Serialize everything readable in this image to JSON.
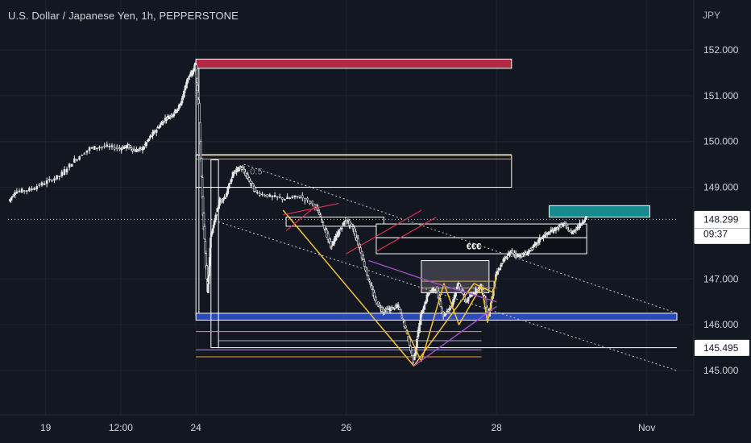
{
  "header": {
    "title": "U.S. Dollar / Japanese Yen, 1h, PEPPERSTONE",
    "currency": "JPY"
  },
  "chart_data": {
    "type": "candlestick",
    "y_ticks": [
      "152.000",
      "151.000",
      "150.000",
      "149.000",
      "147.000",
      "146.000",
      "145.000"
    ],
    "y_tick_values": [
      152,
      151,
      150,
      149,
      147,
      146,
      145
    ],
    "ylim": [
      144.6,
      153.0
    ],
    "x_ticks": [
      "19",
      "12:00",
      "24",
      "26",
      "28",
      "Nov"
    ],
    "x_tick_values": [
      0.5,
      1.0,
      1.5,
      2.5,
      3.5,
      4.5
    ],
    "xlim": [
      0.25,
      4.7
    ],
    "current_price": {
      "label": "148.299",
      "countdown": "09:37",
      "value": 148.299,
      "color": "#ffffff"
    },
    "marked_price": {
      "label": "145.495",
      "value": 145.495
    },
    "fib_label": "0.5",
    "annotation_text": "€€€",
    "colors": {
      "up": "#e8e8e8",
      "down": "#e8e8e8",
      "supply_zone": "#b22b45",
      "target_zone": "#17898f",
      "support_zone": "#2a4bb5",
      "orange_level": "#f29a3c",
      "purple_line": "#a94fcf",
      "pattern_line": "#f4c23b",
      "red_line": "#d9314e",
      "grid": "#1f2330"
    },
    "price_path": [
      [
        0.26,
        148.7
      ],
      [
        0.3,
        148.9
      ],
      [
        0.4,
        148.95
      ],
      [
        0.5,
        149.1
      ],
      [
        0.6,
        149.25
      ],
      [
        0.7,
        149.6
      ],
      [
        0.8,
        149.85
      ],
      [
        0.9,
        149.9
      ],
      [
        1.0,
        149.85
      ],
      [
        1.05,
        149.9
      ],
      [
        1.1,
        149.8
      ],
      [
        1.15,
        149.85
      ],
      [
        1.2,
        150.1
      ],
      [
        1.25,
        150.3
      ],
      [
        1.3,
        150.5
      ],
      [
        1.35,
        150.6
      ],
      [
        1.4,
        150.8
      ],
      [
        1.45,
        151.4
      ],
      [
        1.48,
        151.5
      ],
      [
        1.5,
        151.7
      ],
      [
        1.52,
        150.8
      ],
      [
        1.55,
        148.4
      ],
      [
        1.58,
        146.7
      ],
      [
        1.6,
        147.9
      ],
      [
        1.63,
        148.3
      ],
      [
        1.66,
        148.7
      ],
      [
        1.7,
        148.8
      ],
      [
        1.75,
        149.3
      ],
      [
        1.8,
        149.45
      ],
      [
        1.85,
        149.2
      ],
      [
        1.9,
        148.9
      ],
      [
        2.0,
        148.8
      ],
      [
        2.1,
        148.75
      ],
      [
        2.2,
        148.8
      ],
      [
        2.3,
        148.6
      ],
      [
        2.35,
        148.2
      ],
      [
        2.4,
        147.7
      ],
      [
        2.45,
        148.0
      ],
      [
        2.5,
        148.3
      ],
      [
        2.55,
        148.1
      ],
      [
        2.6,
        147.6
      ],
      [
        2.65,
        147.0
      ],
      [
        2.7,
        146.5
      ],
      [
        2.75,
        146.3
      ],
      [
        2.8,
        146.35
      ],
      [
        2.85,
        146.4
      ],
      [
        2.9,
        145.9
      ],
      [
        2.95,
        145.2
      ],
      [
        3.0,
        146.2
      ],
      [
        3.05,
        146.7
      ],
      [
        3.1,
        146.8
      ],
      [
        3.15,
        146.2
      ],
      [
        3.2,
        146.4
      ],
      [
        3.25,
        146.9
      ],
      [
        3.3,
        146.5
      ],
      [
        3.35,
        146.7
      ],
      [
        3.4,
        146.85
      ],
      [
        3.45,
        146.2
      ],
      [
        3.5,
        147.1
      ],
      [
        3.55,
        147.4
      ],
      [
        3.6,
        147.6
      ],
      [
        3.65,
        147.5
      ],
      [
        3.7,
        147.55
      ],
      [
        3.75,
        147.7
      ],
      [
        3.8,
        147.9
      ],
      [
        3.85,
        148.0
      ],
      [
        3.9,
        148.1
      ],
      [
        3.95,
        148.2
      ],
      [
        4.0,
        148.0
      ],
      [
        4.05,
        148.15
      ],
      [
        4.1,
        148.35
      ]
    ]
  }
}
